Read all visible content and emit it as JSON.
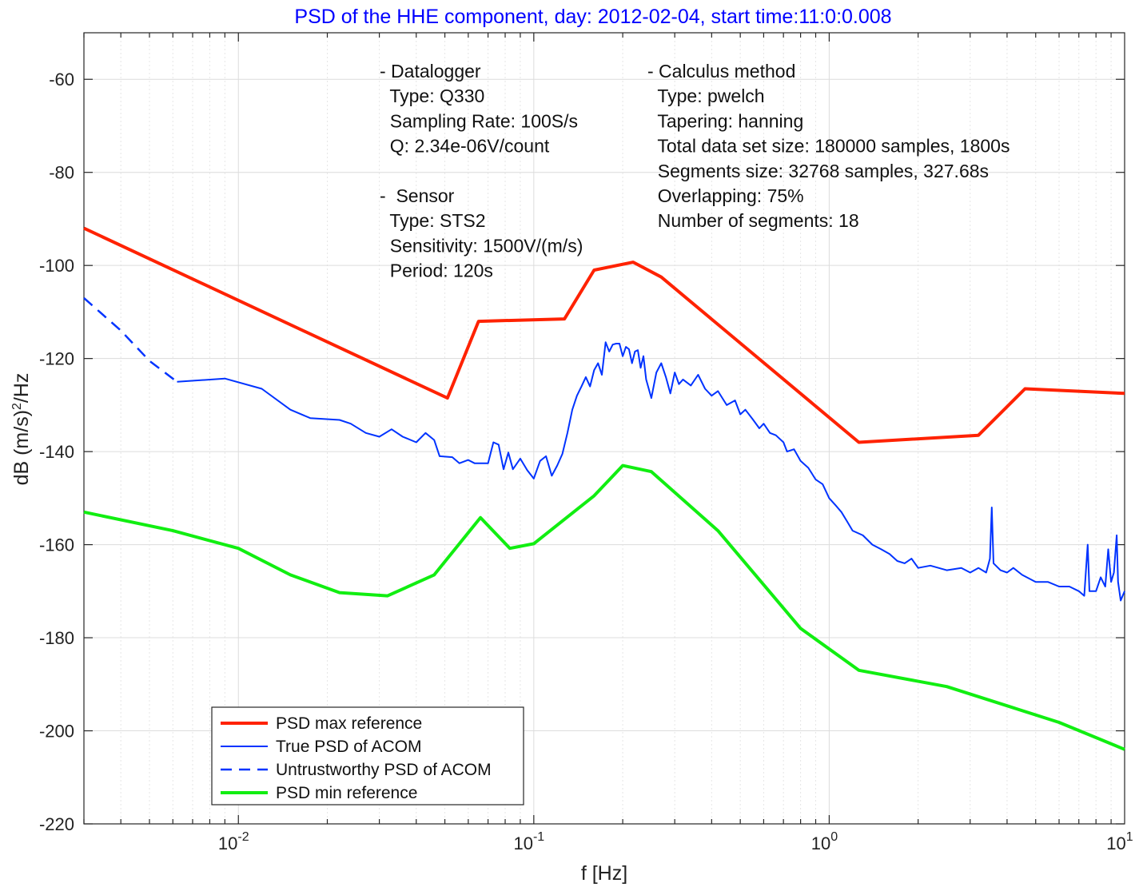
{
  "chart_data": {
    "type": "line",
    "title": "PSD of the HHE component, day: 2012-02-04, start time:11:0:0.008",
    "xlabel": "f [Hz]",
    "ylabel": "dB (m/s)",
    "ylabel_sup": "2",
    "ylabel_suffix": "/Hz",
    "x_scale": "log",
    "xlim": [
      0.003,
      10
    ],
    "ylim": [
      -220,
      -50
    ],
    "grid": true,
    "x_ticks": [
      {
        "value": 0.01,
        "base": "10",
        "exp": "-2"
      },
      {
        "value": 0.1,
        "base": "10",
        "exp": "-1"
      },
      {
        "value": 1,
        "base": "10",
        "exp": "0"
      },
      {
        "value": 10,
        "base": "10",
        "exp": "1"
      }
    ],
    "y_ticks": [
      {
        "value": -60,
        "label": "-60"
      },
      {
        "value": -80,
        "label": "-80"
      },
      {
        "value": -100,
        "label": "-100"
      },
      {
        "value": -120,
        "label": "-120"
      },
      {
        "value": -140,
        "label": "-140"
      },
      {
        "value": -160,
        "label": "-160"
      },
      {
        "value": -180,
        "label": "-180"
      },
      {
        "value": -200,
        "label": "-200"
      },
      {
        "value": -220,
        "label": "-220"
      }
    ],
    "legend_position": "bottom-left",
    "series": [
      {
        "name": "PSD max reference",
        "color": "#ff2200",
        "style": "solid",
        "width": 4,
        "points": [
          [
            0.003,
            -92
          ],
          [
            0.051,
            -128.5
          ],
          [
            0.065,
            -112
          ],
          [
            0.127,
            -111.5
          ],
          [
            0.16,
            -101
          ],
          [
            0.217,
            -99.3
          ],
          [
            0.27,
            -102.5
          ],
          [
            1.26,
            -138
          ],
          [
            3.2,
            -136.5
          ],
          [
            4.6,
            -126.5
          ],
          [
            10,
            -127.5
          ]
        ]
      },
      {
        "name": "True PSD of ACOM",
        "color": "#0033ff",
        "style": "solid",
        "width": 2,
        "points": [
          [
            0.0062,
            -125
          ],
          [
            0.009,
            -124.3
          ],
          [
            0.012,
            -126.5
          ],
          [
            0.015,
            -131
          ],
          [
            0.0175,
            -132.8
          ],
          [
            0.022,
            -133.2
          ],
          [
            0.024,
            -134
          ],
          [
            0.027,
            -136
          ],
          [
            0.03,
            -136.8
          ],
          [
            0.033,
            -135.2
          ],
          [
            0.036,
            -136.8
          ],
          [
            0.04,
            -138
          ],
          [
            0.043,
            -136
          ],
          [
            0.046,
            -137.5
          ],
          [
            0.048,
            -141
          ],
          [
            0.053,
            -141.2
          ],
          [
            0.056,
            -142.5
          ],
          [
            0.06,
            -141.8
          ],
          [
            0.063,
            -142.5
          ],
          [
            0.065,
            -142.5
          ],
          [
            0.07,
            -142.5
          ],
          [
            0.073,
            -138
          ],
          [
            0.076,
            -138.5
          ],
          [
            0.079,
            -143.8
          ],
          [
            0.082,
            -140.2
          ],
          [
            0.085,
            -143.8
          ],
          [
            0.09,
            -141.5
          ],
          [
            0.095,
            -144
          ],
          [
            0.1,
            -145.8
          ],
          [
            0.105,
            -142
          ],
          [
            0.11,
            -141
          ],
          [
            0.115,
            -145.2
          ],
          [
            0.12,
            -143
          ],
          [
            0.125,
            -140.5
          ],
          [
            0.13,
            -136
          ],
          [
            0.135,
            -131
          ],
          [
            0.14,
            -128
          ],
          [
            0.145,
            -126
          ],
          [
            0.15,
            -124
          ],
          [
            0.155,
            -126
          ],
          [
            0.16,
            -122.5
          ],
          [
            0.165,
            -121
          ],
          [
            0.17,
            -123.5
          ],
          [
            0.175,
            -116.5
          ],
          [
            0.18,
            -118.5
          ],
          [
            0.185,
            -117
          ],
          [
            0.19,
            -116.8
          ],
          [
            0.195,
            -116.8
          ],
          [
            0.2,
            -119.5
          ],
          [
            0.205,
            -117.5
          ],
          [
            0.21,
            -118
          ],
          [
            0.215,
            -121
          ],
          [
            0.22,
            -118.5
          ],
          [
            0.225,
            -118.2
          ],
          [
            0.23,
            -122
          ],
          [
            0.235,
            -119.5
          ],
          [
            0.24,
            -124.5
          ],
          [
            0.25,
            -128.5
          ],
          [
            0.26,
            -123
          ],
          [
            0.27,
            -121
          ],
          [
            0.28,
            -124
          ],
          [
            0.29,
            -127.5
          ],
          [
            0.3,
            -123
          ],
          [
            0.31,
            -125.5
          ],
          [
            0.32,
            -124.5
          ],
          [
            0.34,
            -125.8
          ],
          [
            0.36,
            -123.5
          ],
          [
            0.38,
            -126.5
          ],
          [
            0.4,
            -128
          ],
          [
            0.42,
            -127
          ],
          [
            0.45,
            -130
          ],
          [
            0.48,
            -129
          ],
          [
            0.5,
            -132
          ],
          [
            0.52,
            -131
          ],
          [
            0.55,
            -133
          ],
          [
            0.58,
            -135
          ],
          [
            0.6,
            -134
          ],
          [
            0.63,
            -136
          ],
          [
            0.66,
            -136.5
          ],
          [
            0.7,
            -138
          ],
          [
            0.72,
            -140
          ],
          [
            0.76,
            -139.5
          ],
          [
            0.8,
            -142
          ],
          [
            0.85,
            -143.5
          ],
          [
            0.9,
            -146
          ],
          [
            0.95,
            -147
          ],
          [
            1.0,
            -150
          ],
          [
            1.05,
            -151.5
          ],
          [
            1.1,
            -153
          ],
          [
            1.15,
            -155
          ],
          [
            1.2,
            -157
          ],
          [
            1.3,
            -158
          ],
          [
            1.4,
            -160
          ],
          [
            1.5,
            -161
          ],
          [
            1.6,
            -162
          ],
          [
            1.7,
            -163.5
          ],
          [
            1.8,
            -164
          ],
          [
            1.9,
            -163
          ],
          [
            2.0,
            -165
          ],
          [
            2.2,
            -164.5
          ],
          [
            2.5,
            -165.5
          ],
          [
            2.8,
            -165
          ],
          [
            3.0,
            -166
          ],
          [
            3.2,
            -165
          ],
          [
            3.4,
            -166
          ],
          [
            3.5,
            -163
          ],
          [
            3.55,
            -152
          ],
          [
            3.6,
            -164
          ],
          [
            3.8,
            -165.5
          ],
          [
            4.0,
            -166
          ],
          [
            4.2,
            -165
          ],
          [
            4.5,
            -166.5
          ],
          [
            5.0,
            -168
          ],
          [
            5.5,
            -168
          ],
          [
            6.0,
            -169
          ],
          [
            6.5,
            -169
          ],
          [
            7.0,
            -170
          ],
          [
            7.3,
            -171
          ],
          [
            7.5,
            -160
          ],
          [
            7.6,
            -170
          ],
          [
            8.0,
            -170
          ],
          [
            8.3,
            -167
          ],
          [
            8.6,
            -169
          ],
          [
            8.8,
            -161
          ],
          [
            9.0,
            -168
          ],
          [
            9.2,
            -166
          ],
          [
            9.4,
            -158
          ],
          [
            9.5,
            -168
          ],
          [
            9.7,
            -172
          ],
          [
            10.0,
            -170
          ]
        ]
      },
      {
        "name": "Untrustworthy PSD of ACOM",
        "color": "#0033ff",
        "style": "dashed",
        "width": 2.5,
        "points": [
          [
            0.003,
            -107
          ],
          [
            0.004,
            -114
          ],
          [
            0.005,
            -120.5
          ],
          [
            0.0062,
            -125
          ]
        ]
      },
      {
        "name": "PSD min reference",
        "color": "#11ee11",
        "style": "solid",
        "width": 4,
        "points": [
          [
            0.003,
            -153
          ],
          [
            0.006,
            -157
          ],
          [
            0.01,
            -160.8
          ],
          [
            0.015,
            -166.5
          ],
          [
            0.022,
            -170.3
          ],
          [
            0.032,
            -171
          ],
          [
            0.046,
            -166.5
          ],
          [
            0.066,
            -154.2
          ],
          [
            0.083,
            -160.8
          ],
          [
            0.1,
            -159.8
          ],
          [
            0.16,
            -149.5
          ],
          [
            0.2,
            -143
          ],
          [
            0.25,
            -144.3
          ],
          [
            0.42,
            -157
          ],
          [
            0.8,
            -178
          ],
          [
            1.26,
            -187
          ],
          [
            2.5,
            -190.5
          ],
          [
            6,
            -198.2
          ],
          [
            10,
            -204
          ]
        ]
      }
    ],
    "annotations": {
      "left_block": [
        "- Datalogger",
        "  Type: Q330",
        "  Sampling Rate: 100S/s",
        "  Q: 2.34e-06V/count",
        "",
        "-  Sensor",
        "  Type: STS2",
        "  Sensitivity: 1500V/(m/s)",
        "  Period: 120s"
      ],
      "right_block": [
        "- Calculus method",
        "  Type: pwelch",
        "  Tapering: hanning",
        "  Total data set size: 180000 samples, 1800s",
        "  Segments size: 32768 samples, 327.68s",
        "  Overlapping: 75%",
        "  Number of segments: 18"
      ]
    }
  }
}
